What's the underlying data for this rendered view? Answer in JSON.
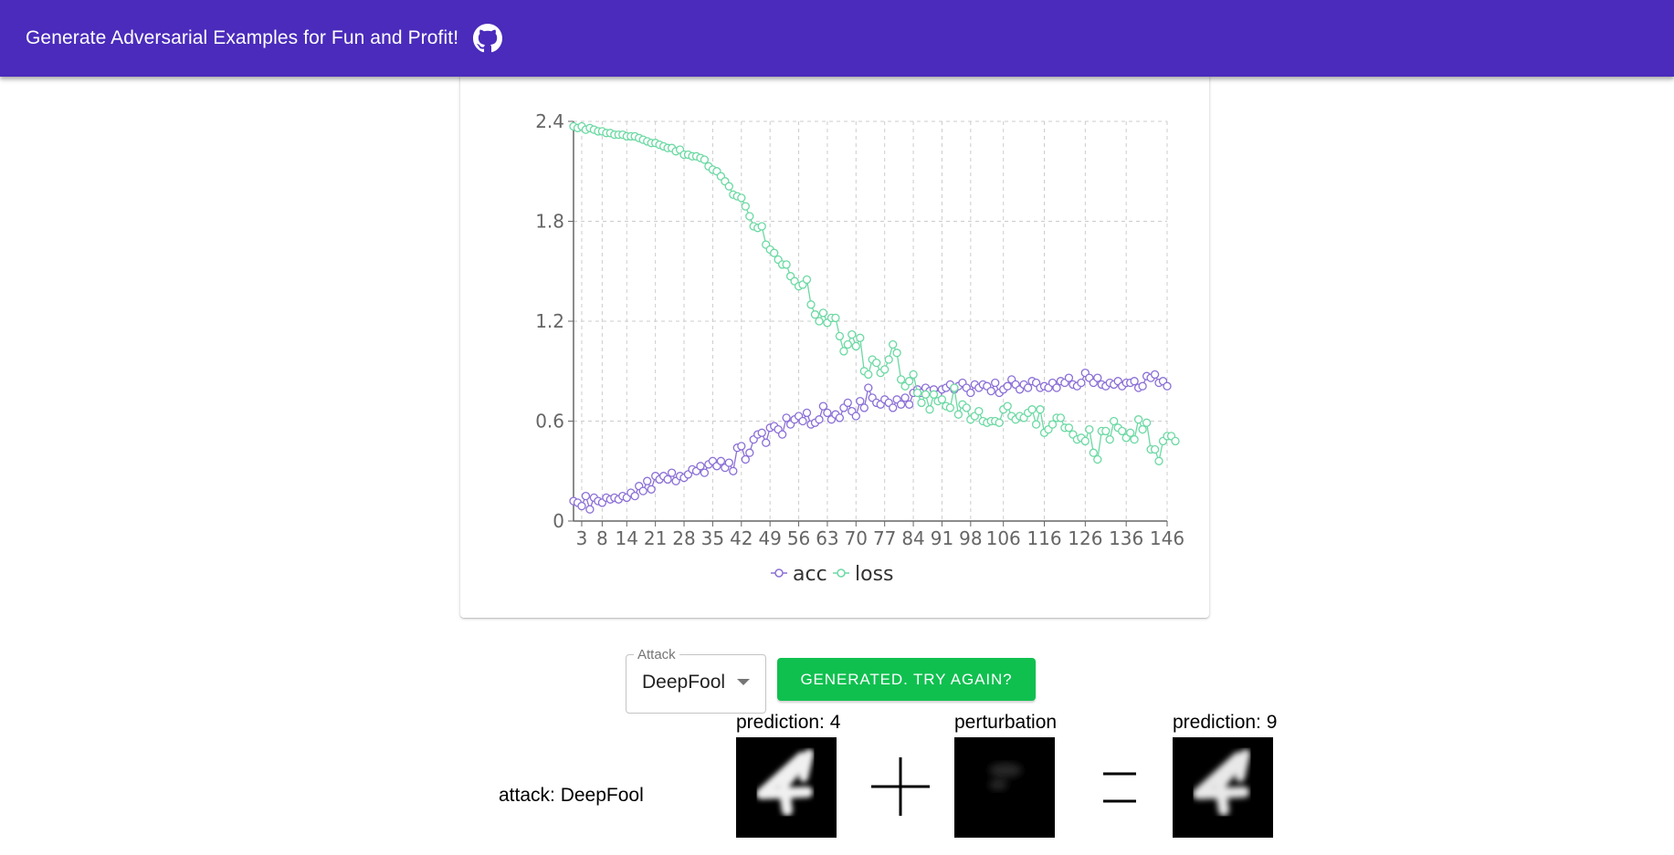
{
  "header": {
    "title": "Generate Adversarial Examples for Fun and Profit!",
    "github_icon": "github-icon"
  },
  "chart_data": {
    "type": "line",
    "x_ticks": [
      "3",
      "8",
      "14",
      "21",
      "28",
      "35",
      "42",
      "49",
      "56",
      "63",
      "70",
      "77",
      "84",
      "91",
      "98",
      "106",
      "116",
      "126",
      "136",
      "146"
    ],
    "y_ticks": [
      "0",
      "0.6",
      "1.2",
      "1.8",
      "2.4"
    ],
    "ylim": [
      0,
      2.4
    ],
    "xlim": [
      1,
      146
    ],
    "grid": true,
    "legend_position": "bottom",
    "series": [
      {
        "name": "acc",
        "color": "#8b6fd6",
        "values": [
          0.12,
          0.11,
          0.09,
          0.15,
          0.07,
          0.14,
          0.12,
          0.11,
          0.14,
          0.13,
          0.14,
          0.13,
          0.15,
          0.14,
          0.17,
          0.15,
          0.21,
          0.18,
          0.24,
          0.19,
          0.27,
          0.25,
          0.27,
          0.25,
          0.29,
          0.24,
          0.27,
          0.26,
          0.28,
          0.31,
          0.3,
          0.33,
          0.29,
          0.34,
          0.36,
          0.33,
          0.36,
          0.32,
          0.35,
          0.3,
          0.44,
          0.45,
          0.37,
          0.41,
          0.49,
          0.52,
          0.53,
          0.47,
          0.56,
          0.57,
          0.55,
          0.52,
          0.62,
          0.58,
          0.61,
          0.63,
          0.6,
          0.65,
          0.58,
          0.59,
          0.61,
          0.69,
          0.65,
          0.61,
          0.64,
          0.62,
          0.68,
          0.71,
          0.66,
          0.63,
          0.72,
          0.68,
          0.8,
          0.74,
          0.71,
          0.7,
          0.73,
          0.71,
          0.68,
          0.73,
          0.7,
          0.74,
          0.7,
          0.77,
          0.79,
          0.77,
          0.8,
          0.78,
          0.79,
          0.76,
          0.79,
          0.8,
          0.82,
          0.79,
          0.81,
          0.83,
          0.8,
          0.77,
          0.82,
          0.8,
          0.82,
          0.81,
          0.78,
          0.83,
          0.77,
          0.79,
          0.81,
          0.85,
          0.82,
          0.79,
          0.82,
          0.8,
          0.84,
          0.83,
          0.8,
          0.81,
          0.8,
          0.83,
          0.8,
          0.84,
          0.83,
          0.86,
          0.82,
          0.81,
          0.83,
          0.89,
          0.86,
          0.83,
          0.86,
          0.82,
          0.81,
          0.83,
          0.82,
          0.84,
          0.81,
          0.83,
          0.83,
          0.84,
          0.8,
          0.81,
          0.87,
          0.86,
          0.88,
          0.83,
          0.84,
          0.81
        ]
      },
      {
        "name": "loss",
        "color": "#6bd9a3",
        "values": [
          2.37,
          2.36,
          2.37,
          2.35,
          2.36,
          2.35,
          2.34,
          2.34,
          2.33,
          2.33,
          2.32,
          2.32,
          2.32,
          2.31,
          2.31,
          2.31,
          2.3,
          2.29,
          2.28,
          2.27,
          2.27,
          2.26,
          2.25,
          2.24,
          2.24,
          2.22,
          2.23,
          2.2,
          2.2,
          2.19,
          2.19,
          2.18,
          2.17,
          2.13,
          2.11,
          2.1,
          2.07,
          2.04,
          2.01,
          1.96,
          1.95,
          1.94,
          1.89,
          1.83,
          1.77,
          1.76,
          1.77,
          1.66,
          1.63,
          1.61,
          1.57,
          1.54,
          1.54,
          1.47,
          1.44,
          1.41,
          1.42,
          1.45,
          1.3,
          1.24,
          1.2,
          1.25,
          1.19,
          1.22,
          1.22,
          1.11,
          1.02,
          1.06,
          1.12,
          1.05,
          1.1,
          0.9,
          0.88,
          0.97,
          0.95,
          0.89,
          0.91,
          0.97,
          1.06,
          1.01,
          0.85,
          0.81,
          0.84,
          0.88,
          0.77,
          0.71,
          0.76,
          0.67,
          0.76,
          0.72,
          0.73,
          0.69,
          0.68,
          0.8,
          0.64,
          0.7,
          0.68,
          0.61,
          0.63,
          0.66,
          0.6,
          0.59,
          0.6,
          0.6,
          0.59,
          0.67,
          0.69,
          0.63,
          0.61,
          0.63,
          0.62,
          0.65,
          0.67,
          0.58,
          0.67,
          0.53,
          0.55,
          0.58,
          0.62,
          0.62,
          0.56,
          0.56,
          0.52,
          0.49,
          0.5,
          0.48,
          0.55,
          0.41,
          0.37,
          0.54,
          0.54,
          0.49,
          0.6,
          0.56,
          0.54,
          0.5,
          0.53,
          0.49,
          0.61,
          0.55,
          0.59,
          0.43,
          0.43,
          0.36,
          0.48,
          0.51,
          0.51,
          0.48
        ]
      }
    ]
  },
  "controls": {
    "attack_label": "Attack",
    "attack_value": "DeepFool",
    "generate_button": "GENERATED. TRY AGAIN?"
  },
  "result": {
    "attack_text": "attack: DeepFool",
    "original_caption": "prediction: 4",
    "perturbation_caption": "perturbation",
    "adversarial_caption": "prediction: 9"
  }
}
